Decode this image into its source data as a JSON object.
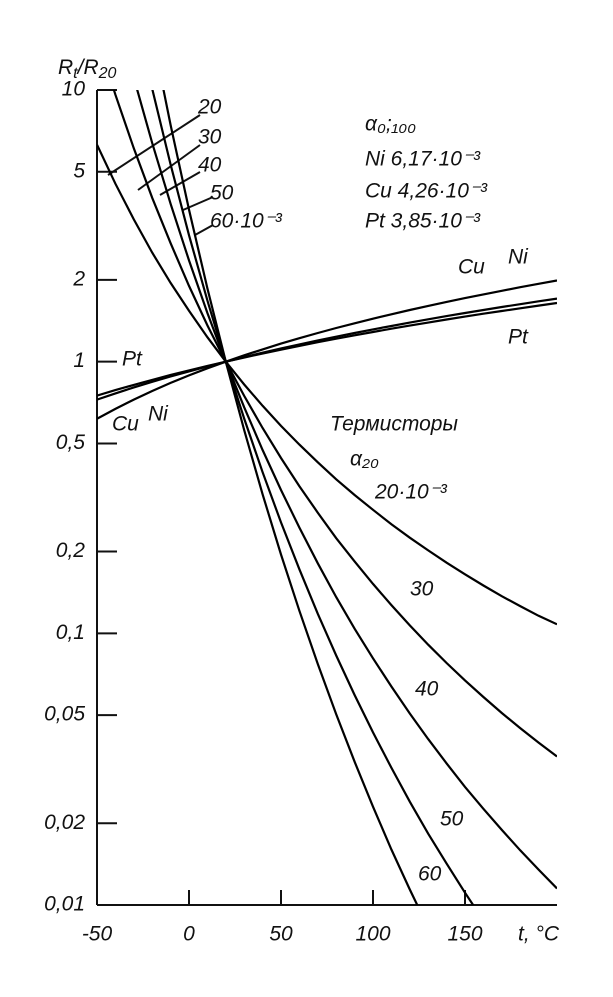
{
  "chart_data": {
    "type": "line",
    "ylabel": [
      "R",
      "t",
      "/R",
      "20"
    ],
    "xlabel": "t, °C",
    "log_y": true,
    "xlim": [
      -50,
      200
    ],
    "xticks": [
      -50,
      0,
      50,
      100,
      150
    ],
    "ylim": [
      0.01,
      10
    ],
    "yticks": [
      {
        "value": 0.01,
        "label": "0,01"
      },
      {
        "value": 0.02,
        "label": "0,02"
      },
      {
        "value": 0.05,
        "label": "0,05"
      },
      {
        "value": 0.1,
        "label": "0,1"
      },
      {
        "value": 0.2,
        "label": "0,2"
      },
      {
        "value": 0.5,
        "label": "0,5"
      },
      1,
      2,
      5,
      10
    ],
    "x": [
      -50,
      -40,
      -30,
      -20,
      -10,
      0,
      10,
      20,
      30,
      40,
      50,
      60,
      70,
      80,
      90,
      100,
      110,
      120,
      130,
      140,
      150,
      160,
      170,
      180,
      190,
      200
    ],
    "series": [
      {
        "color": "#000000",
        "values": [
          6.29,
          4.52,
          3.34,
          2.52,
          1.95,
          1.54,
          1.23,
          1,
          0.824,
          0.688,
          0.58,
          0.495,
          0.426,
          0.369,
          0.323,
          0.285,
          0.252,
          0.225,
          0.202,
          0.182,
          0.165,
          0.15,
          0.137,
          0.126,
          0.116,
          0.108
        ]
      },
      {
        "color": "#000000",
        "values": [
          15.8,
          9.61,
          6.1,
          4.01,
          2.73,
          1.9,
          1.36,
          1,
          0.748,
          0.57,
          0.442,
          0.348,
          0.278,
          0.224,
          0.184,
          0.152,
          0.127,
          0.107,
          0.0908,
          0.0778,
          0.0671,
          0.0583,
          0.0509,
          0.0448,
          0.0396,
          0.0352
        ]
      },
      {
        "color": "#000000",
        "values": [
          null,
          null,
          11.1,
          6.38,
          3.81,
          2.36,
          1.51,
          1,
          0.679,
          0.473,
          0.337,
          0.245,
          0.181,
          0.136,
          0.104,
          0.0809,
          0.0637,
          0.0507,
          0.0408,
          0.0332,
          0.0272,
          0.0226,
          0.0189,
          0.0159,
          0.0135,
          0.0115
        ]
      },
      {
        "color": "#000000",
        "values": [
          null,
          null,
          null,
          10.1,
          5.32,
          2.92,
          1.68,
          1,
          0.617,
          0.392,
          0.256,
          0.172,
          0.118,
          0.0829,
          0.0593,
          0.0432,
          0.032,
          0.024,
          0.0183,
          0.0142,
          0.0111,
          0.00877,
          null,
          null,
          null,
          null
        ]
      },
      {
        "color": "#000000",
        "values": [
          null,
          null,
          null,
          16.1,
          7.43,
          3.63,
          1.86,
          1,
          0.56,
          0.325,
          0.195,
          0.121,
          0.0771,
          0.0504,
          0.0337,
          0.023,
          0.016,
          0.0114,
          0.00824,
          null,
          null,
          null,
          null,
          null,
          null,
          null
        ]
      },
      {
        "color": "#000000",
        "values": [
          0.616,
          0.67,
          0.725,
          0.78,
          0.835,
          0.89,
          0.945,
          1,
          1.055,
          1.11,
          1.165,
          1.22,
          1.275,
          1.33,
          1.384,
          1.439,
          1.494,
          1.549,
          1.604,
          1.659,
          1.714,
          1.769,
          1.824,
          1.879,
          1.934,
          1.989
        ]
      },
      {
        "color": "#000000",
        "values": [
          0.725,
          0.764,
          0.804,
          0.843,
          0.882,
          0.921,
          0.961,
          1,
          1.039,
          1.079,
          1.118,
          1.157,
          1.196,
          1.236,
          1.275,
          1.314,
          1.353,
          1.393,
          1.432,
          1.471,
          1.51,
          1.55,
          1.589,
          1.628,
          1.668,
          1.707
        ]
      },
      {
        "color": "#000000",
        "values": [
          0.75,
          0.786,
          0.821,
          0.857,
          0.893,
          0.929,
          0.964,
          1,
          1.036,
          1.072,
          1.107,
          1.143,
          1.179,
          1.215,
          1.25,
          1.286,
          1.322,
          1.358,
          1.393,
          1.429,
          1.465,
          1.501,
          1.536,
          1.572,
          1.608,
          1.644
        ]
      }
    ],
    "annotations": [
      "α₀;₁₀₀",
      "Ni 6,17·10⁻³",
      "Cu 4,26·10⁻³",
      "Pt 3,85·10⁻³",
      "Термисторы",
      "α₂₀",
      "20",
      "30",
      "40",
      "50",
      "60·10⁻³",
      "20·10⁻³",
      "30",
      "40",
      "50",
      "60",
      "Pt",
      "Cu",
      "Ni",
      "Cu",
      "Ni",
      "Pt"
    ]
  }
}
